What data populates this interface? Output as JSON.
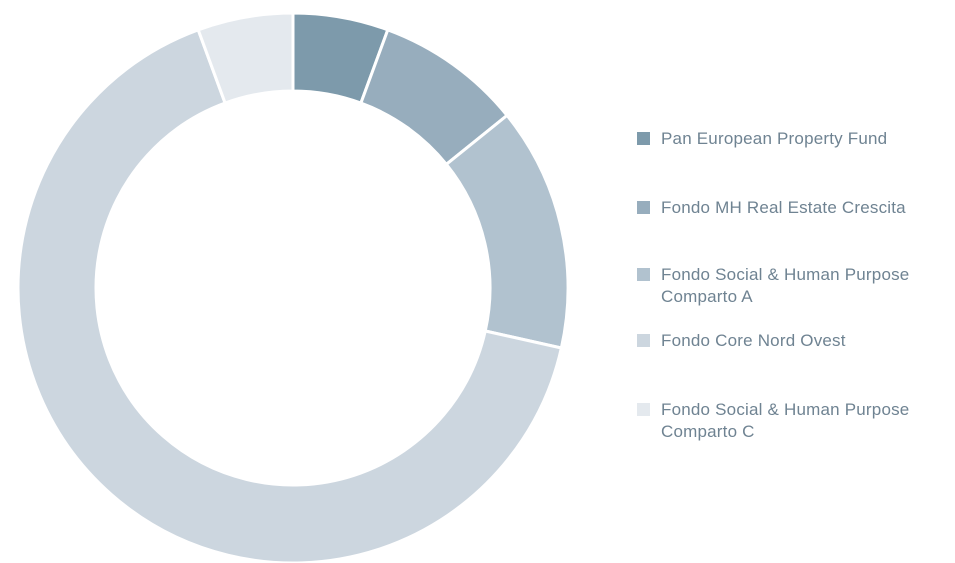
{
  "chart_data": {
    "type": "donut",
    "categories": [
      "Pan European Property Fund",
      "Fondo MH Real Estate Crescita",
      "Fondo Social & Human Purpose Comparto A",
      "Fondo Core Nord Ovest",
      "Fondo Social & Human Purpose Comparto C"
    ],
    "values": [
      5.6,
      8.6,
      14.3,
      65.9,
      5.6
    ],
    "colors": [
      "#7d9aab",
      "#97adbd",
      "#b1c2cf",
      "#ccd6df",
      "#e4e9ee"
    ],
    "legend": "right"
  }
}
